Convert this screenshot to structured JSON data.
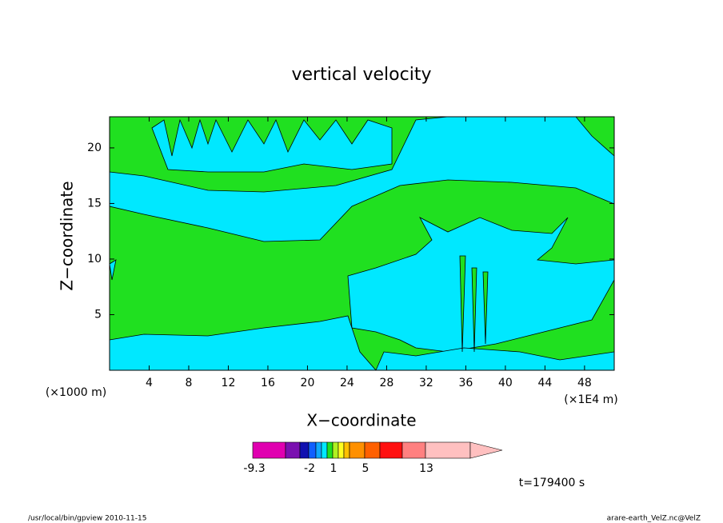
{
  "chart_data": {
    "type": "contour",
    "title": "vertical velocity",
    "x_label": "X−coordinate",
    "y_label": "Z−coordinate",
    "x_unit_label": "(×1000 m)",
    "x_scale_label": "(×1E4 m)",
    "time_label": "t=179400 s",
    "footer_left": "/usr/local/bin/gpview   2010-11-15",
    "footer_right": "arare-earth_VelZ.nc@VelZ",
    "xlim": [
      0,
      51
    ],
    "ylim": [
      0,
      22.8
    ],
    "xticks": [
      4,
      8,
      12,
      16,
      20,
      24,
      28,
      32,
      36,
      40,
      44,
      48
    ],
    "yticks": [
      5,
      10,
      15,
      20
    ],
    "colorbar": {
      "colors": [
        "#e000b0",
        "#7a10b0",
        "#1010b0",
        "#1060ff",
        "#10a8ff",
        "#00e8ff",
        "#20e020",
        "#b0f020",
        "#ffff20",
        "#ffc000",
        "#ff9000",
        "#ff6000",
        "#ff1010",
        "#ff8080",
        "#ffc0c0"
      ],
      "levels": [
        -9.3,
        null,
        null,
        -2,
        null,
        null,
        null,
        1,
        null,
        null,
        null,
        5,
        null,
        null,
        13,
        null
      ]
    }
  }
}
